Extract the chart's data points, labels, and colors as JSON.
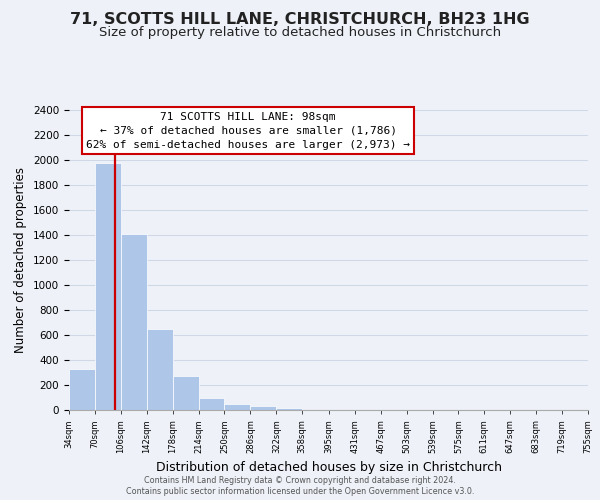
{
  "title": "71, SCOTTS HILL LANE, CHRISTCHURCH, BH23 1HG",
  "subtitle": "Size of property relative to detached houses in Christchurch",
  "xlabel": "Distribution of detached houses by size in Christchurch",
  "ylabel": "Number of detached properties",
  "bar_edges": [
    34,
    70,
    106,
    142,
    178,
    214,
    250,
    286,
    322,
    358,
    395,
    431,
    467,
    503,
    539,
    575,
    611,
    647,
    683,
    719,
    755
  ],
  "bar_heights": [
    325,
    1975,
    1410,
    650,
    275,
    100,
    45,
    30,
    20,
    0,
    0,
    0,
    0,
    0,
    0,
    0,
    0,
    0,
    0,
    0
  ],
  "bar_color": "#aec6e8",
  "property_line_x": 98,
  "property_line_color": "#cc0000",
  "annotation_text": "71 SCOTTS HILL LANE: 98sqm\n← 37% of detached houses are smaller (1,786)\n62% of semi-detached houses are larger (2,973) →",
  "annotation_box_color": "#ffffff",
  "annotation_box_edge_color": "#cc0000",
  "ylim": [
    0,
    2400
  ],
  "yticks": [
    0,
    200,
    400,
    600,
    800,
    1000,
    1200,
    1400,
    1600,
    1800,
    2000,
    2200,
    2400
  ],
  "tick_labels": [
    "34sqm",
    "70sqm",
    "106sqm",
    "142sqm",
    "178sqm",
    "214sqm",
    "250sqm",
    "286sqm",
    "322sqm",
    "358sqm",
    "395sqm",
    "431sqm",
    "467sqm",
    "503sqm",
    "539sqm",
    "575sqm",
    "611sqm",
    "647sqm",
    "683sqm",
    "719sqm",
    "755sqm"
  ],
  "footer_line1": "Contains HM Land Registry data © Crown copyright and database right 2024.",
  "footer_line2": "Contains public sector information licensed under the Open Government Licence v3.0.",
  "grid_color": "#d0d8e8",
  "background_color": "#eef2f8",
  "title_fontsize": 11.5,
  "subtitle_fontsize": 9.5,
  "annotation_fontsize": 8.0,
  "xlabel_fontsize": 9,
  "ylabel_fontsize": 8.5
}
